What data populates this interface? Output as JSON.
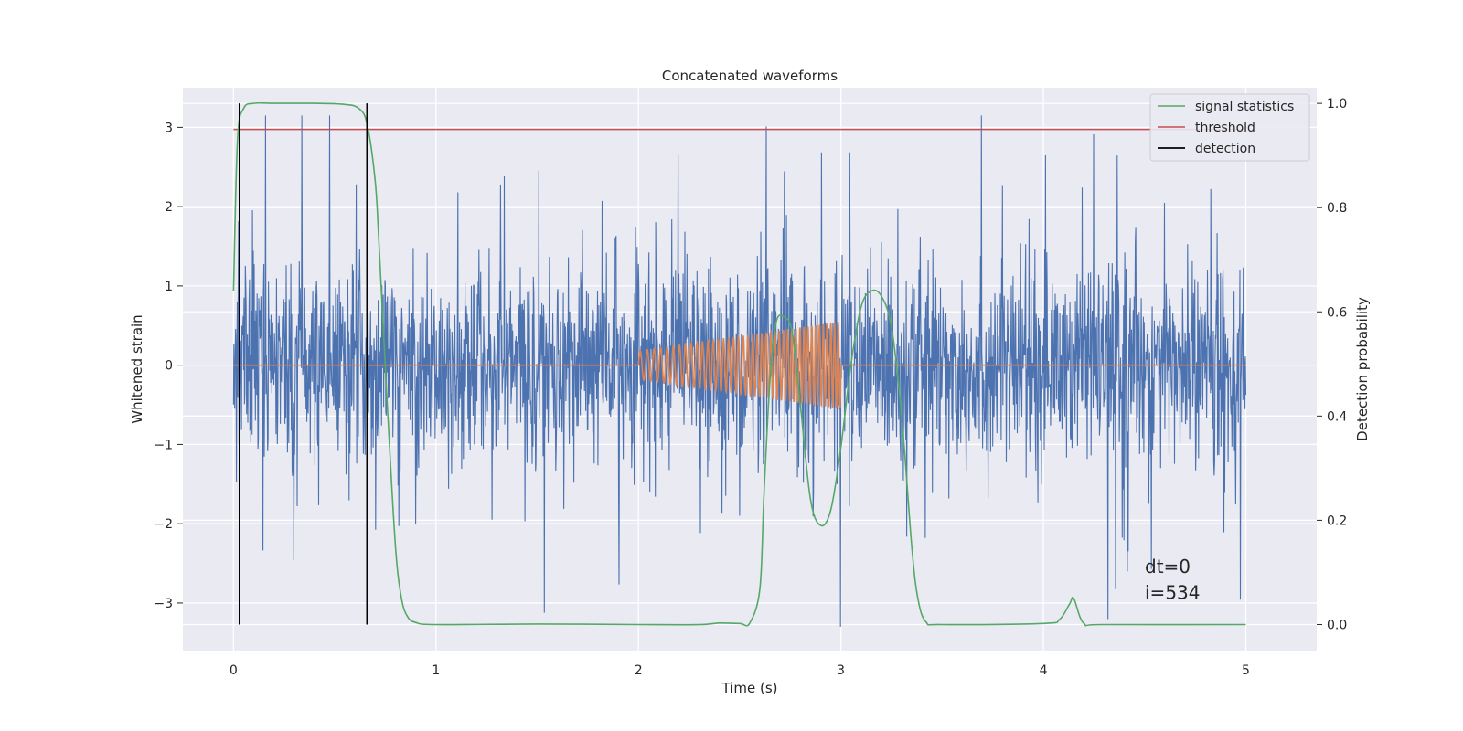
{
  "chart_data": {
    "type": "line",
    "title": "Concatenated waveforms",
    "xlabel": "Time (s)",
    "ylabel_left": "Whitened strain",
    "ylabel_right": "Detection probability",
    "xlim": [
      -0.25,
      5.35
    ],
    "ylim_left": [
      -3.6,
      3.5
    ],
    "ylim_right": [
      -0.05,
      1.03
    ],
    "x_ticks": [
      0,
      1,
      2,
      3,
      4,
      5
    ],
    "x_tick_labels": [
      "0",
      "1",
      "2",
      "3",
      "4",
      "5"
    ],
    "y_left_ticks": [
      -3,
      -2,
      -1,
      0,
      1,
      2,
      3
    ],
    "y_left_tick_labels": [
      "−3",
      "−2",
      "−1",
      "0",
      "1",
      "2",
      "3"
    ],
    "y_right_ticks": [
      0.0,
      0.2,
      0.4,
      0.6,
      0.8,
      1.0
    ],
    "y_right_tick_labels": [
      "0.0",
      "0.2",
      "0.4",
      "0.6",
      "0.8",
      "1.0"
    ],
    "grid": true,
    "legend_position": "top-right",
    "colors": {
      "plot_background": "#eaeaf2",
      "grid": "#ffffff",
      "strain": "#4c72b0",
      "injected_signal": "#dd8452",
      "signal_statistics": "#55a868",
      "threshold": "#c44e52",
      "detection": "#000000"
    },
    "series": [
      {
        "role": "strain",
        "axis": "left",
        "x_range": [
          0,
          5
        ],
        "bulk_range": [
          -1.0,
          1.0
        ],
        "peak_range": [
          -3.3,
          3.15
        ]
      },
      {
        "role": "injected_signal",
        "axis": "left",
        "x_range": [
          0,
          5
        ],
        "chirp_window": [
          2.0,
          3.0
        ],
        "chirp_amplitude": [
          0.18,
          0.55
        ]
      },
      {
        "name": "signal statistics",
        "axis": "right",
        "x": [
          0.0,
          0.02,
          0.05,
          0.1,
          0.2,
          0.4,
          0.55,
          0.62,
          0.66,
          0.7,
          0.72,
          0.76,
          0.8,
          0.83,
          0.86,
          0.9,
          1.0,
          1.5,
          2.0,
          2.3,
          2.4,
          2.5,
          2.55,
          2.6,
          2.62,
          2.65,
          2.68,
          2.72,
          2.76,
          2.8,
          2.85,
          2.9,
          2.95,
          3.0,
          3.05,
          3.1,
          3.15,
          3.2,
          3.25,
          3.3,
          3.35,
          3.38,
          3.42,
          3.5,
          4.0,
          4.08,
          4.13,
          4.15,
          4.2,
          4.3,
          5.0
        ],
        "y": [
          0.64,
          0.93,
          0.99,
          1.0,
          1.0,
          1.0,
          0.998,
          0.99,
          0.96,
          0.85,
          0.72,
          0.42,
          0.15,
          0.05,
          0.015,
          0.004,
          0.0,
          0.001,
          0.0,
          0.0,
          0.003,
          0.002,
          0.003,
          0.07,
          0.25,
          0.47,
          0.58,
          0.59,
          0.56,
          0.42,
          0.24,
          0.19,
          0.22,
          0.34,
          0.5,
          0.61,
          0.64,
          0.63,
          0.57,
          0.4,
          0.15,
          0.05,
          0.005,
          0.0,
          0.002,
          0.01,
          0.04,
          0.05,
          0.002,
          0.0,
          0.0
        ]
      },
      {
        "name": "threshold",
        "axis": "right",
        "x": [
          0,
          5
        ],
        "y": [
          0.95,
          0.95
        ]
      },
      {
        "name": "detection",
        "axis": "right",
        "x": [
          0.03,
          0.66
        ],
        "y_range": [
          0.0,
          1.0
        ]
      }
    ],
    "annotations": [
      {
        "text": "dt=0",
        "x": 4.5,
        "y_data": -2.62
      },
      {
        "text": "i=534",
        "x": 4.5,
        "y_data": -2.95
      }
    ]
  }
}
